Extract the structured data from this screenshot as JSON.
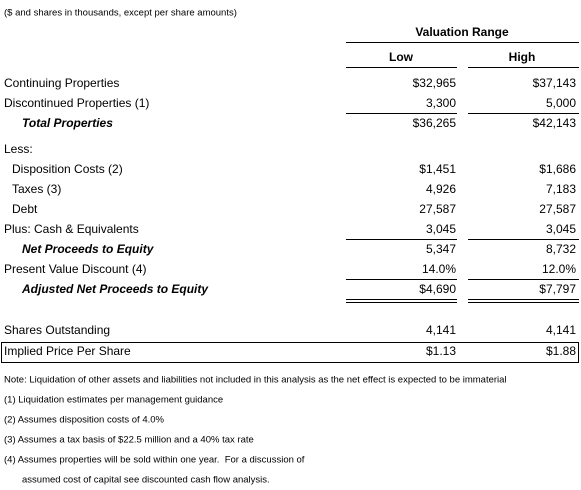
{
  "header": {
    "note": "($ and shares in thousands, except per share amounts)"
  },
  "table": {
    "group_header": "Valuation Range",
    "columns": [
      "Low",
      "High"
    ],
    "rows": [
      {
        "label": "Continuing Properties",
        "low": "$32,965",
        "high": "$37,143"
      },
      {
        "label": "Discontinued Properties (1)",
        "low": "3,300",
        "high": "5,000"
      },
      {
        "label": "Total Properties",
        "low": "$36,265",
        "high": "$42,143"
      },
      {
        "label": "Less:"
      },
      {
        "label": "Disposition Costs (2)",
        "low": "$1,451",
        "high": "$1,686"
      },
      {
        "label": "Taxes (3)",
        "low": "4,926",
        "high": "7,183"
      },
      {
        "label": "Debt",
        "low": "27,587",
        "high": "27,587"
      },
      {
        "label": "Plus: Cash & Equivalents",
        "low": "3,045",
        "high": "3,045"
      },
      {
        "label": "Net Proceeds to Equity",
        "low": "5,347",
        "high": "8,732"
      },
      {
        "label": "Present Value Discount (4)",
        "low": "14.0%",
        "high": "12.0%"
      },
      {
        "label": "Adjusted Net Proceeds to Equity",
        "low": "$4,690",
        "high": "$7,797"
      },
      {
        "label": "Shares Outstanding",
        "low": "4,141",
        "high": "4,141"
      },
      {
        "label": "Implied Price Per Share",
        "low": "$1.13",
        "high": "$1.88"
      }
    ]
  },
  "notes": [
    "Note: Liquidation of other assets and liabilities not included in this analysis as the net effect is expected to be immaterial",
    "(1) Liquidation estimates per management guidance",
    "(2) Assumes disposition costs of 4.0%",
    "(3) Assumes a tax basis of $22.5 million and a 40% tax rate",
    "(4) Assumes properties will be sold within one year.  For a discussion of",
    "assumed cost of capital see discounted cash flow analysis."
  ]
}
